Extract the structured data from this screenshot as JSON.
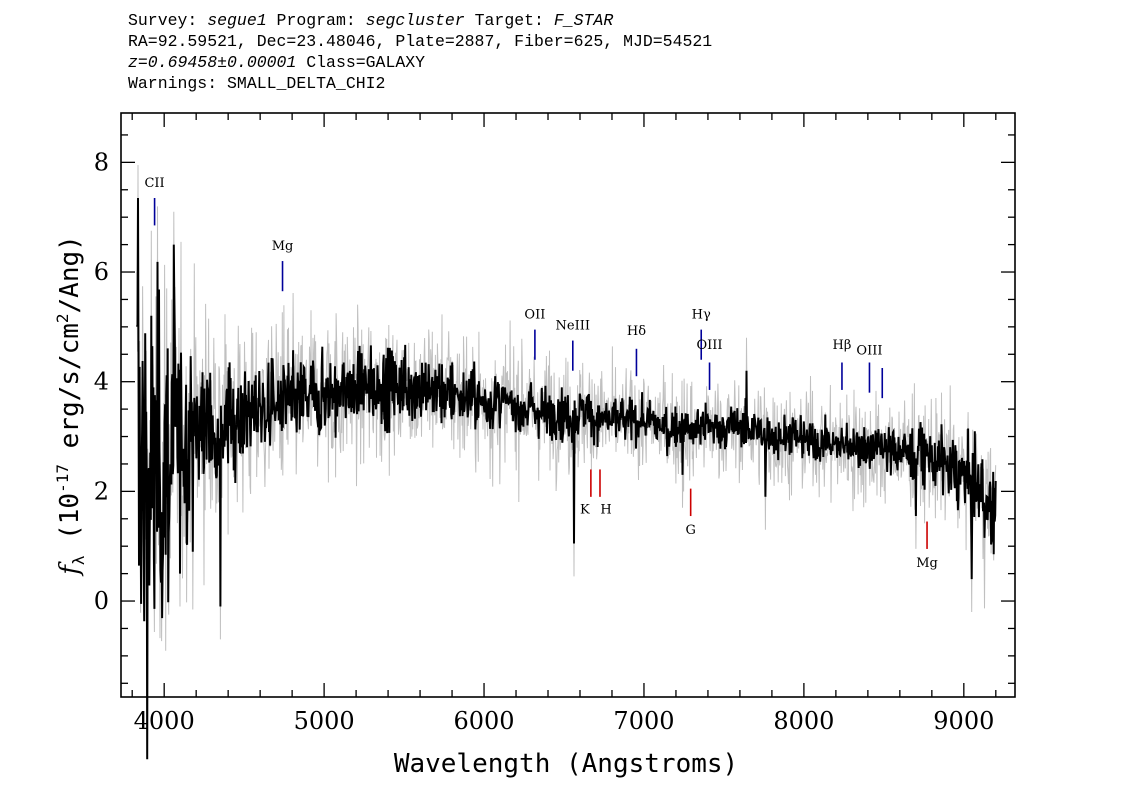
{
  "header": {
    "survey_label": "Survey:",
    "survey": "segue1",
    "program_label": "Program:",
    "program": "segcluster",
    "target_label": "Target:",
    "target": "F_STAR",
    "coords": "RA=92.59521, Dec=23.48046, Plate=2887, Fiber=625, MJD=54521",
    "redshift": "z=0.69458±0.00001",
    "class": "Class=GALAXY",
    "warnings": "Warnings: SMALL_DELTA_CHI2"
  },
  "chart_data": {
    "type": "line",
    "xlabel": "Wavelength (Angstroms)",
    "ylabel_main": "f",
    "ylabel_sub": "λ",
    "ylabel_open": " (10",
    "ylabel_exp": "-17",
    "ylabel_mid": " erg/s/cm",
    "ylabel_exp2": "2",
    "ylabel_close": "/Ang)",
    "xlim": [
      3730,
      9320
    ],
    "ylim": [
      -1.75,
      8.9
    ],
    "xticks": [
      4000,
      5000,
      6000,
      7000,
      8000,
      9000
    ],
    "yticks": [
      0,
      2,
      4,
      6,
      8
    ],
    "x_minor_step": 200,
    "y_minor_step": 0.5,
    "flux_color": "#000000",
    "error_color": "#c0c0c0",
    "series": [
      {
        "role": "flux",
        "x": [
          3830,
          3860,
          3890,
          3920,
          3950,
          3980,
          4010,
          4040,
          4070,
          4100,
          4150,
          4200,
          4250,
          4300,
          4350,
          4400,
          4450,
          4500,
          4600,
          4700,
          4800,
          4900,
          5000,
          5100,
          5200,
          5300,
          5400,
          5500,
          5600,
          5700,
          5800,
          5900,
          6000,
          6100,
          6200,
          6300,
          6400,
          6500,
          6560,
          6600,
          6700,
          6800,
          6900,
          7000,
          7100,
          7200,
          7300,
          7400,
          7500,
          7600,
          7700,
          7800,
          7900,
          8000,
          8100,
          8200,
          8300,
          8400,
          8500,
          8600,
          8700,
          8800,
          8900,
          9000,
          9100,
          9200
        ],
        "y": [
          3.0,
          2.6,
          2.3,
          2.1,
          2.2,
          2.4,
          2.6,
          2.7,
          2.8,
          2.9,
          3.0,
          3.1,
          3.2,
          3.2,
          3.3,
          3.3,
          3.4,
          3.4,
          3.5,
          3.6,
          3.6,
          3.7,
          3.75,
          3.8,
          3.85,
          3.9,
          3.9,
          3.95,
          3.9,
          3.85,
          3.8,
          3.7,
          3.6,
          3.6,
          3.55,
          3.5,
          3.45,
          3.4,
          3.3,
          3.45,
          3.35,
          3.3,
          3.3,
          3.25,
          3.2,
          3.15,
          3.1,
          3.2,
          3.15,
          3.2,
          3.1,
          3.0,
          3.0,
          2.95,
          2.9,
          2.85,
          2.85,
          2.8,
          2.75,
          2.75,
          2.7,
          2.6,
          2.45,
          2.3,
          2.0,
          1.5
        ],
        "noise": [
          2.0,
          2.0,
          2.0,
          1.9,
          1.8,
          1.6,
          1.5,
          1.3,
          1.2,
          1.0,
          0.9,
          0.8,
          0.7,
          0.6,
          0.55,
          0.5,
          0.5,
          0.45,
          0.42,
          0.4,
          0.4,
          0.38,
          0.36,
          0.35,
          0.35,
          0.35,
          0.34,
          0.33,
          0.32,
          0.3,
          0.3,
          0.28,
          0.27,
          0.26,
          0.25,
          0.24,
          0.24,
          0.24,
          0.24,
          0.23,
          0.22,
          0.22,
          0.2,
          0.2,
          0.2,
          0.2,
          0.2,
          0.2,
          0.2,
          0.2,
          0.2,
          0.2,
          0.2,
          0.2,
          0.2,
          0.2,
          0.2,
          0.2,
          0.22,
          0.22,
          0.25,
          0.28,
          0.3,
          0.32,
          0.35,
          0.4
        ]
      },
      {
        "role": "error",
        "x": [
          3830,
          4000,
          4200,
          4400,
          4600,
          4800,
          5000,
          5500,
          6000,
          6500,
          7000,
          7500,
          8000,
          8500,
          9000,
          9200
        ],
        "y": [
          1.6,
          1.5,
          1.1,
          0.9,
          0.8,
          0.75,
          0.7,
          0.65,
          0.6,
          0.55,
          0.5,
          0.5,
          0.5,
          0.55,
          0.6,
          0.7
        ]
      }
    ],
    "spikes": [
      {
        "x": 3835,
        "y": 7.35
      },
      {
        "x": 4060,
        "y": 6.5
      },
      {
        "x": 4350,
        "y": -0.1
      },
      {
        "x": 4100,
        "y": 0.5
      },
      {
        "x": 6562,
        "y": 1.05
      },
      {
        "x": 7240,
        "y": 2.3
      },
      {
        "x": 7640,
        "y": 4.2
      },
      {
        "x": 7760,
        "y": 1.9
      },
      {
        "x": 8700,
        "y": 1.55
      },
      {
        "x": 9050,
        "y": 0.4
      }
    ],
    "emission_lines": [
      {
        "name": "CII",
        "x": 3940,
        "y0": 6.85,
        "y1": 7.35,
        "label_y": 7.55,
        "color": "#00009a"
      },
      {
        "name": "Mg",
        "x": 4740,
        "y0": 5.65,
        "y1": 6.2,
        "label_y": 6.4,
        "color": "#00009a"
      },
      {
        "name": "OII",
        "x": 6318,
        "y0": 4.4,
        "y1": 4.95,
        "label_y": 5.15,
        "color": "#00009a"
      },
      {
        "name": "NeIII",
        "x": 6555,
        "y0": 4.2,
        "y1": 4.75,
        "label_y": 4.95,
        "color": "#00009a"
      },
      {
        "name": "Hδ",
        "x": 6953,
        "y0": 4.1,
        "y1": 4.6,
        "label_y": 4.85,
        "color": "#00009a"
      },
      {
        "name": "Hγ",
        "x": 7358,
        "y0": 4.4,
        "y1": 4.95,
        "label_y": 5.15,
        "color": "#00009a"
      },
      {
        "name": "OIII",
        "x": 7410,
        "y0": 3.85,
        "y1": 4.35,
        "label_y": 4.6,
        "color": "#00009a"
      },
      {
        "name": "Hβ",
        "x": 8238,
        "y0": 3.85,
        "y1": 4.35,
        "label_y": 4.6,
        "color": "#00009a"
      },
      {
        "name": "OIII",
        "x": 8410,
        "y0": 3.8,
        "y1": 4.35,
        "label_y": 4.5,
        "color": "#00009a"
      },
      {
        "name": "",
        "x": 8490,
        "y0": 3.7,
        "y1": 4.25,
        "label_y": 4.5,
        "color": "#00009a"
      }
    ],
    "absorption_lines": [
      {
        "name": "K",
        "x": 6668,
        "y0": 1.9,
        "y1": 2.4,
        "label_y": 1.6,
        "label_dx": -6,
        "color": "#cc0000"
      },
      {
        "name": "H",
        "x": 6725,
        "y0": 1.9,
        "y1": 2.4,
        "label_y": 1.6,
        "label_dx": 6,
        "color": "#cc0000"
      },
      {
        "name": "G",
        "x": 7292,
        "y0": 1.55,
        "y1": 2.05,
        "label_y": 1.22,
        "label_dx": 0,
        "color": "#cc0000"
      },
      {
        "name": "Mg",
        "x": 8770,
        "y0": 0.95,
        "y1": 1.45,
        "label_y": 0.62,
        "label_dx": 0,
        "color": "#cc0000"
      }
    ]
  }
}
